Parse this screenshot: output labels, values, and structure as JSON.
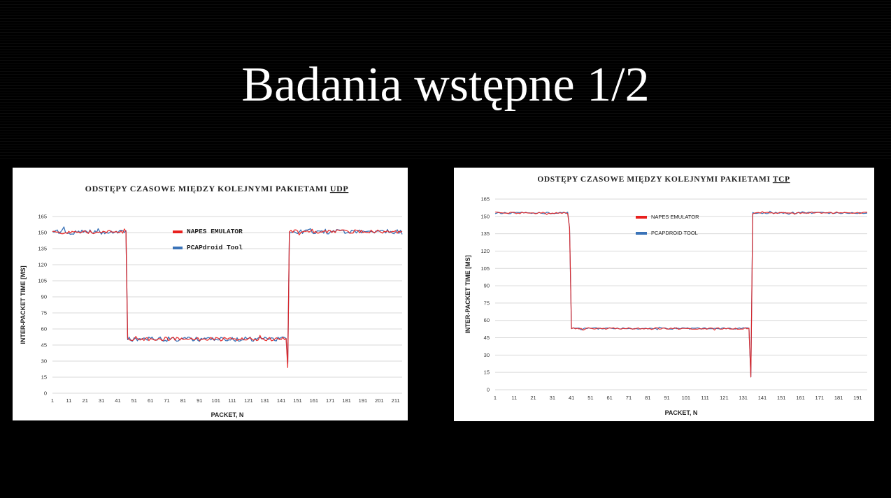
{
  "slide": {
    "title": "Badania wstępne 1/2"
  },
  "chart_data": [
    {
      "type": "line",
      "title": "ODSTĘPY CZASOWE MIĘDZY KOLEJNYMI PAKIETAMI",
      "title_suffix": "UDP",
      "xlabel": "PACKET, N",
      "ylabel": "INTER-PACKET TIME [MS]",
      "ylim": [
        0,
        165
      ],
      "yticks": [
        0,
        15,
        30,
        45,
        60,
        75,
        90,
        105,
        120,
        135,
        150,
        165
      ],
      "xlim": [
        1,
        215
      ],
      "xticks": [
        1,
        11,
        21,
        31,
        41,
        51,
        61,
        71,
        81,
        91,
        101,
        111,
        121,
        131,
        141,
        151,
        161,
        171,
        181,
        191,
        201,
        211
      ],
      "grid": true,
      "legend_position": "top-center",
      "series": [
        {
          "name": "NAPES EMULATOR",
          "color": "#e8201e",
          "segments": [
            {
              "from": 1,
              "to": 46,
              "level": 150.5
            },
            {
              "from": 47,
              "to": 144,
              "level": 50.5
            },
            {
              "from": 145,
              "to": 215,
              "level": 151
            }
          ],
          "dips": [
            {
              "x": 145,
              "y": 24
            }
          ]
        },
        {
          "name": "PCAPdroid Tool",
          "color": "#3a73b8",
          "segments": [
            {
              "from": 1,
              "to": 46,
              "level": 150.5
            },
            {
              "from": 47,
              "to": 144,
              "level": 50.5
            },
            {
              "from": 145,
              "to": 215,
              "level": 151
            }
          ],
          "dips": [
            {
              "x": 145,
              "y": 28
            }
          ]
        }
      ]
    },
    {
      "type": "line",
      "title": "ODSTĘPY CZASOWE MIĘDZY KOLEJNYMI PAKIETAMI",
      "title_suffix": "TCP",
      "xlabel": "PACKET, N",
      "ylabel": "INTER-PACKET TIME [MS]",
      "ylim": [
        0,
        165
      ],
      "yticks": [
        0,
        15,
        30,
        45,
        60,
        75,
        90,
        105,
        120,
        135,
        150,
        165
      ],
      "xlim": [
        1,
        196
      ],
      "xticks": [
        1,
        11,
        21,
        31,
        41,
        51,
        61,
        71,
        81,
        91,
        101,
        111,
        121,
        131,
        141,
        151,
        161,
        171,
        181,
        191
      ],
      "grid": true,
      "legend_position": "top-center",
      "series": [
        {
          "name": "NAPES EMULATOR",
          "color": "#e8201e",
          "segments": [
            {
              "from": 1,
              "to": 39,
              "level": 153
            },
            {
              "from": 41,
              "to": 134,
              "level": 53
            },
            {
              "from": 136,
              "to": 196,
              "level": 153
            }
          ],
          "dips": [
            {
              "x": 40,
              "y": 140
            },
            {
              "x": 135,
              "y": 11
            }
          ]
        },
        {
          "name": "PCAPDROID TOOL",
          "color": "#3a73b8",
          "segments": [
            {
              "from": 1,
              "to": 39,
              "level": 153
            },
            {
              "from": 41,
              "to": 134,
              "level": 53
            },
            {
              "from": 136,
              "to": 196,
              "level": 153
            }
          ],
          "dips": [
            {
              "x": 40,
              "y": 140
            },
            {
              "x": 135,
              "y": 11
            }
          ]
        }
      ]
    }
  ]
}
